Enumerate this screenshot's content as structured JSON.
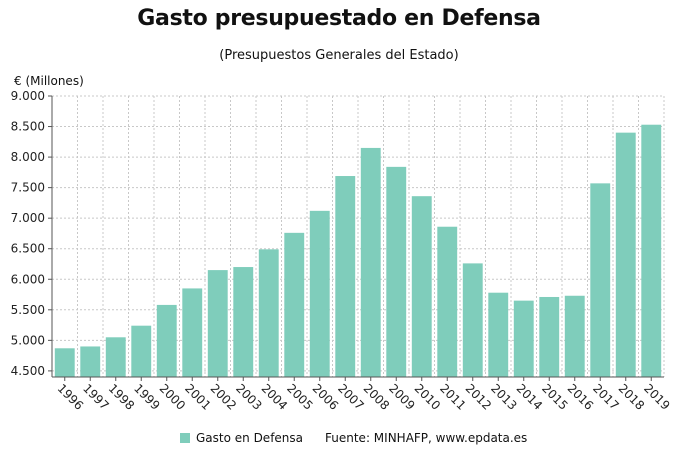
{
  "title": "Gasto presupuestado en Defensa",
  "subtitle": "(Presupuestos Generales del Estado)",
  "unit_label": "€ (Millones)",
  "legend": {
    "series_name": "Gasto en Defensa",
    "source": "Fuente: MINHAFP, www.epdata.es"
  },
  "colors": {
    "bar": "#7fcdbb",
    "grid": "#c8c8c8",
    "axis": "#555555"
  },
  "chart_data": {
    "type": "bar",
    "title": "Gasto presupuestado en Defensa",
    "subtitle": "(Presupuestos Generales del Estado)",
    "ylabel": "€ (Millones)",
    "categories": [
      "1996",
      "1997",
      "1998",
      "1999",
      "2000",
      "2001",
      "2002",
      "2003",
      "2004",
      "2005",
      "2006",
      "2007",
      "2008",
      "2009",
      "2010",
      "2011",
      "2012",
      "2013",
      "2014",
      "2015",
      "2016",
      "2017",
      "2018",
      "2019"
    ],
    "series": [
      {
        "name": "Gasto en Defensa",
        "values": [
          4870,
          4900,
          5050,
          5240,
          5580,
          5850,
          6150,
          6200,
          6490,
          6760,
          7120,
          7690,
          8150,
          7840,
          7360,
          6860,
          6260,
          5780,
          5650,
          5710,
          5730,
          7570,
          8400,
          8530
        ]
      }
    ],
    "ylim": [
      4400,
      9000
    ],
    "yticks": [
      4500,
      5000,
      5500,
      6000,
      6500,
      7000,
      7500,
      8000,
      8500,
      9000
    ],
    "ytick_labels": [
      "4.500",
      "5.000",
      "5.500",
      "6.000",
      "6.500",
      "7.000",
      "7.500",
      "8.000",
      "8.500",
      "9.000"
    ],
    "grid": true,
    "legend_position": "bottom"
  }
}
